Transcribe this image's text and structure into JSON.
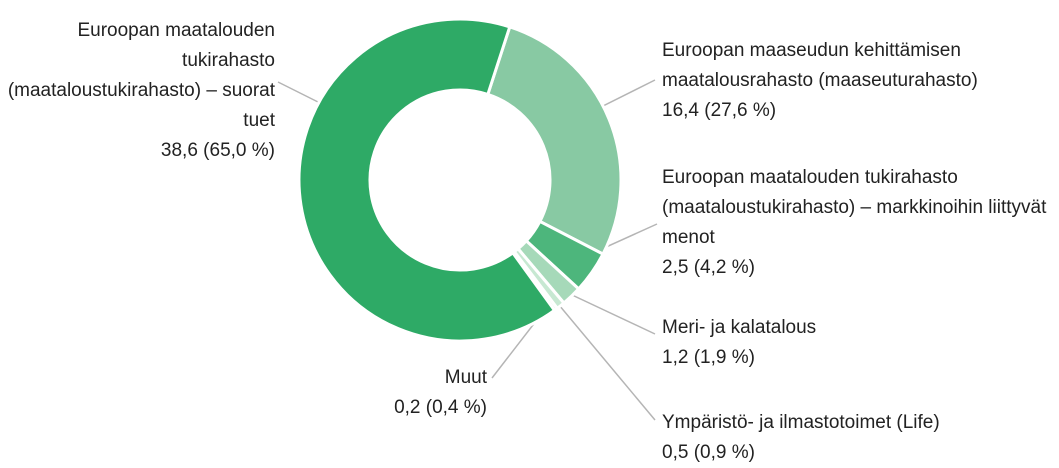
{
  "chart_data": {
    "type": "donut",
    "categories": [
      "Euroopan maaseudun kehittämisen maatalousrahasto (maaseuturahasto)",
      "Euroopan maatalouden tukirahasto (maataloustukirahasto) – markkinoihin liittyvät menot",
      "Meri- ja kalatalous",
      "Ympäristö- ja ilmastotoimet (Life)",
      "Muut",
      "Euroopan maatalouden tukirahasto (maataloustukirahasto) – suorat tuet"
    ],
    "values": [
      16.4,
      2.5,
      1.2,
      0.5,
      0.2,
      38.6
    ],
    "value_labels": [
      "16,4 (27,6 %)",
      "2,5 (4,2 %)",
      "1,2 (1,9 %)",
      "0,5 (0,9 %)",
      "0,2 (0,4 %)",
      "38,6 (65,0 %)"
    ],
    "colors": [
      "#88c9a3",
      "#4db67c",
      "#a6d9b9",
      "#c7e8d2",
      "#e3f3e9",
      "#2eaa66"
    ]
  }
}
